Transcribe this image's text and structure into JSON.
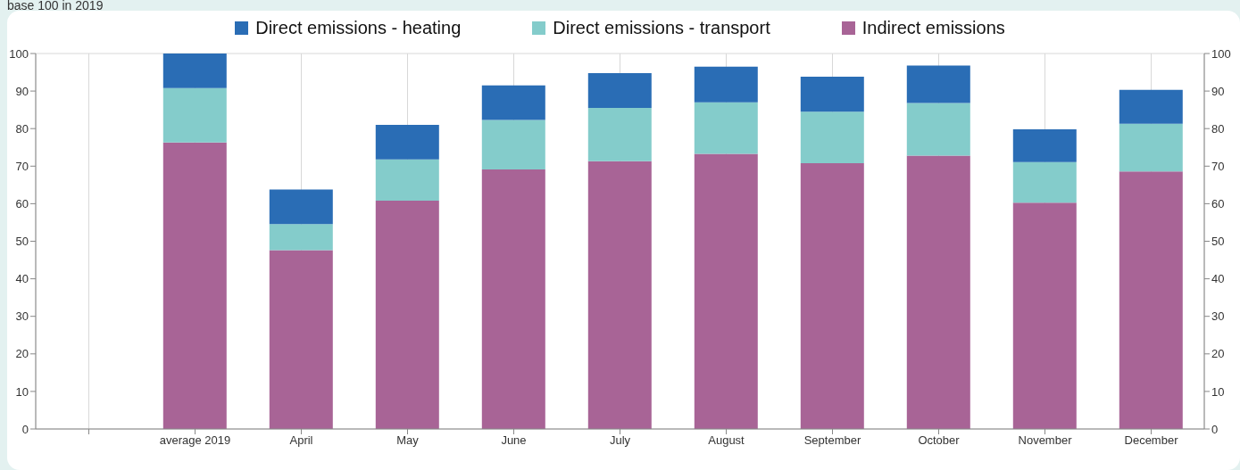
{
  "chart_data": {
    "type": "bar",
    "title": "base 100 in 2019",
    "stacked": true,
    "categories": [
      null,
      "average 2019",
      "April",
      "May",
      "June",
      "July",
      "August",
      "September",
      "October",
      "November",
      "December"
    ],
    "series": [
      {
        "name": "Indirect emissions",
        "color": "#a86496",
        "values": [
          null,
          76.3,
          47.6,
          60.8,
          69.1,
          71.3,
          73.3,
          70.8,
          72.8,
          60.3,
          68.6
        ]
      },
      {
        "name": "Direct emissions - transport",
        "color": "#84cccb",
        "values": [
          null,
          14.5,
          7.0,
          11.0,
          13.2,
          14.2,
          13.7,
          13.7,
          14.0,
          10.8,
          12.7
        ]
      },
      {
        "name": "Direct emissions - heating",
        "color": "#2a6db5",
        "values": [
          null,
          9.2,
          9.2,
          9.2,
          9.2,
          9.3,
          9.5,
          9.3,
          10.0,
          8.7,
          9.0
        ]
      }
    ],
    "ylim": [
      0,
      100
    ],
    "yticks": [
      0,
      10,
      20,
      30,
      40,
      50,
      60,
      70,
      80,
      90,
      100
    ],
    "y2lim": [
      0,
      100
    ],
    "y2ticks": [
      0,
      10,
      20,
      30,
      40,
      50,
      60,
      70,
      80,
      90,
      100
    ],
    "grid": true,
    "legend": "top"
  }
}
